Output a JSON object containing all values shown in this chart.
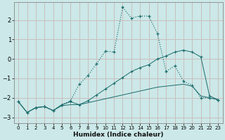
{
  "xlabel": "Humidex (Indice chaleur)",
  "background_color": "#cce8e8",
  "grid_color": "#c8bebe",
  "line_color": "#1a6b6b",
  "xlim": [
    -0.5,
    23.5
  ],
  "ylim": [
    -3.3,
    2.9
  ],
  "yticks": [
    -3,
    -2,
    -1,
    0,
    1,
    2
  ],
  "xticks": [
    0,
    1,
    2,
    3,
    4,
    5,
    6,
    7,
    8,
    9,
    10,
    11,
    12,
    13,
    14,
    15,
    16,
    17,
    18,
    19,
    20,
    21,
    22,
    23
  ],
  "series1_x": [
    0,
    1,
    2,
    3,
    4,
    5,
    6,
    7,
    8,
    9,
    10,
    11,
    12,
    13,
    14,
    15,
    16,
    17,
    18,
    19,
    20,
    21,
    22,
    23
  ],
  "series1_y": [
    -2.2,
    -2.75,
    -2.5,
    -2.45,
    -2.65,
    -2.35,
    -2.15,
    -1.3,
    -0.85,
    -0.25,
    0.4,
    0.35,
    2.65,
    2.1,
    2.2,
    2.2,
    1.3,
    -0.65,
    -0.35,
    -1.15,
    -1.35,
    -2.0,
    -2.0,
    -2.1
  ],
  "series2_x": [
    0,
    1,
    2,
    3,
    4,
    5,
    6,
    7,
    8,
    9,
    10,
    11,
    12,
    13,
    14,
    15,
    16,
    17,
    18,
    19,
    20,
    21,
    22,
    23
  ],
  "series2_y": [
    -2.2,
    -2.75,
    -2.5,
    -2.45,
    -2.65,
    -2.35,
    -2.2,
    -2.35,
    -2.15,
    -1.85,
    -1.55,
    -1.25,
    -0.95,
    -0.65,
    -0.45,
    -0.3,
    0.0,
    0.15,
    0.35,
    0.45,
    0.35,
    0.1,
    -1.9,
    -2.1
  ],
  "series3_x": [
    0,
    1,
    2,
    3,
    4,
    5,
    6,
    7,
    8,
    9,
    10,
    11,
    12,
    13,
    14,
    15,
    16,
    17,
    18,
    19,
    20,
    21,
    22,
    23
  ],
  "series3_y": [
    -2.2,
    -2.75,
    -2.5,
    -2.45,
    -2.65,
    -2.4,
    -2.35,
    -2.35,
    -2.25,
    -2.15,
    -2.05,
    -1.95,
    -1.85,
    -1.75,
    -1.65,
    -1.55,
    -1.45,
    -1.4,
    -1.35,
    -1.3,
    -1.4,
    -1.9,
    -2.0,
    -2.1
  ]
}
